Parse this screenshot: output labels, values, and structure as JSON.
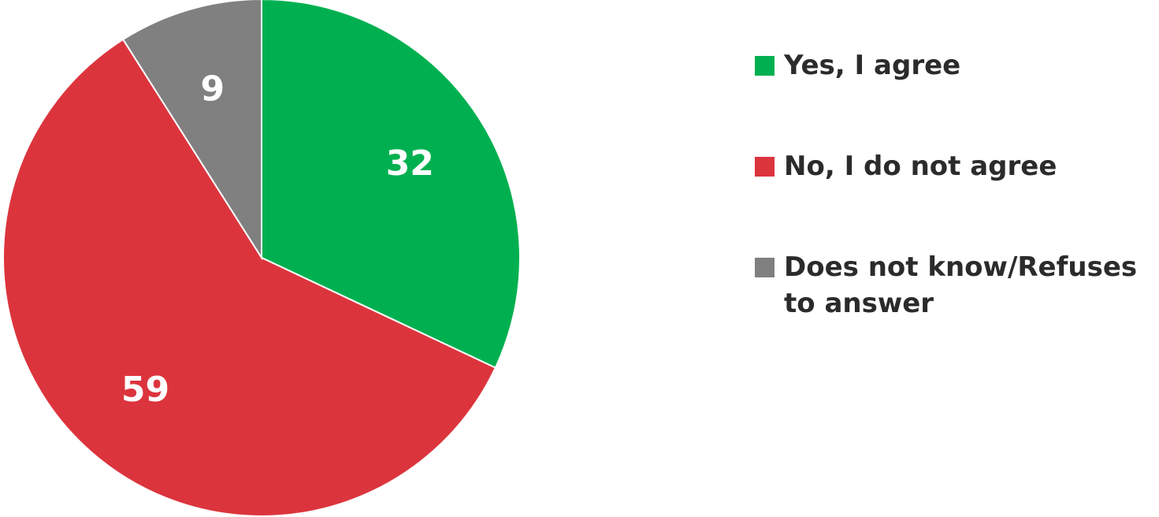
{
  "chart_data": {
    "type": "pie",
    "categories": [
      "Yes, I agree",
      "No, I do not agree",
      "Does not know/Refuses to answer"
    ],
    "values": [
      32,
      59,
      9
    ],
    "data_labels": [
      "32",
      "59",
      "9"
    ],
    "colors": [
      "#00b050",
      "#dc343d",
      "#808080"
    ],
    "legend_position": "right",
    "start_angle": "12 o'clock",
    "direction": "clockwise"
  },
  "legend": {
    "items": [
      {
        "label": "Yes, I agree",
        "color": "#00b050"
      },
      {
        "label": "No, I do not agree",
        "color": "#dc343d"
      },
      {
        "label": "Does not know/Refuses to answer",
        "color": "#808080"
      }
    ]
  }
}
